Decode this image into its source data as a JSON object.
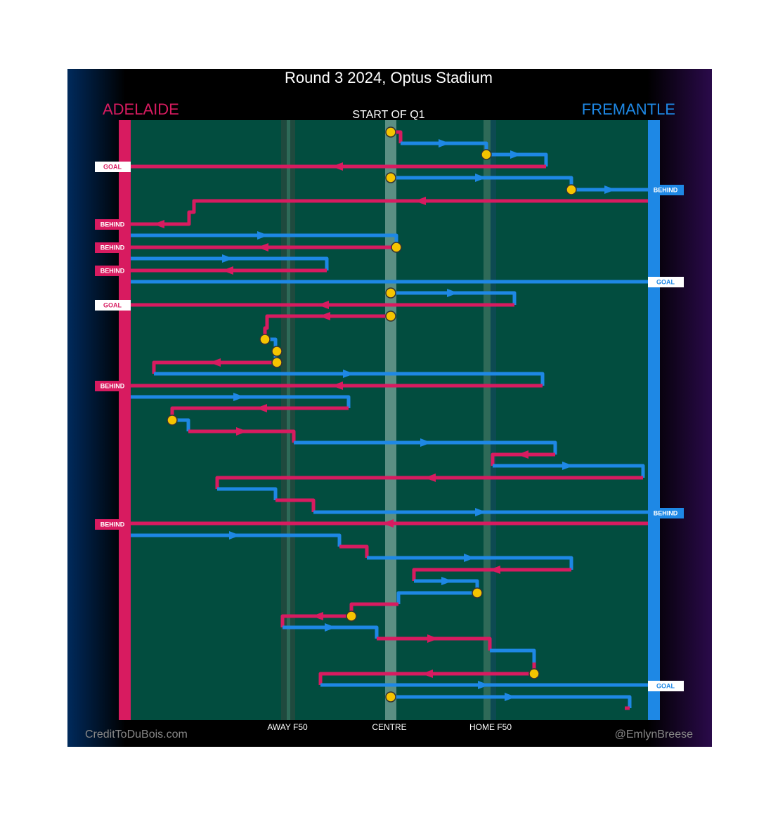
{
  "title": "Round 3 2024, Optus Stadium",
  "teams": {
    "left": "ADELAIDE",
    "right": "FREMANTLE"
  },
  "period": "START OF Q1",
  "zones": [
    "AWAY F50",
    "CENTRE",
    "HOME F50"
  ],
  "credits": {
    "left": "CreditToDuBois.com",
    "right": "@EmlynBreese"
  },
  "left_outcomes": [
    "GOAL",
    "BEHIND",
    "BEHIND",
    "BEHIND",
    "GOAL",
    "BEHIND",
    "BEHIND"
  ],
  "right_outcomes": [
    "BEHIND",
    "GOAL",
    "BEHIND",
    "GOAL"
  ]
}
